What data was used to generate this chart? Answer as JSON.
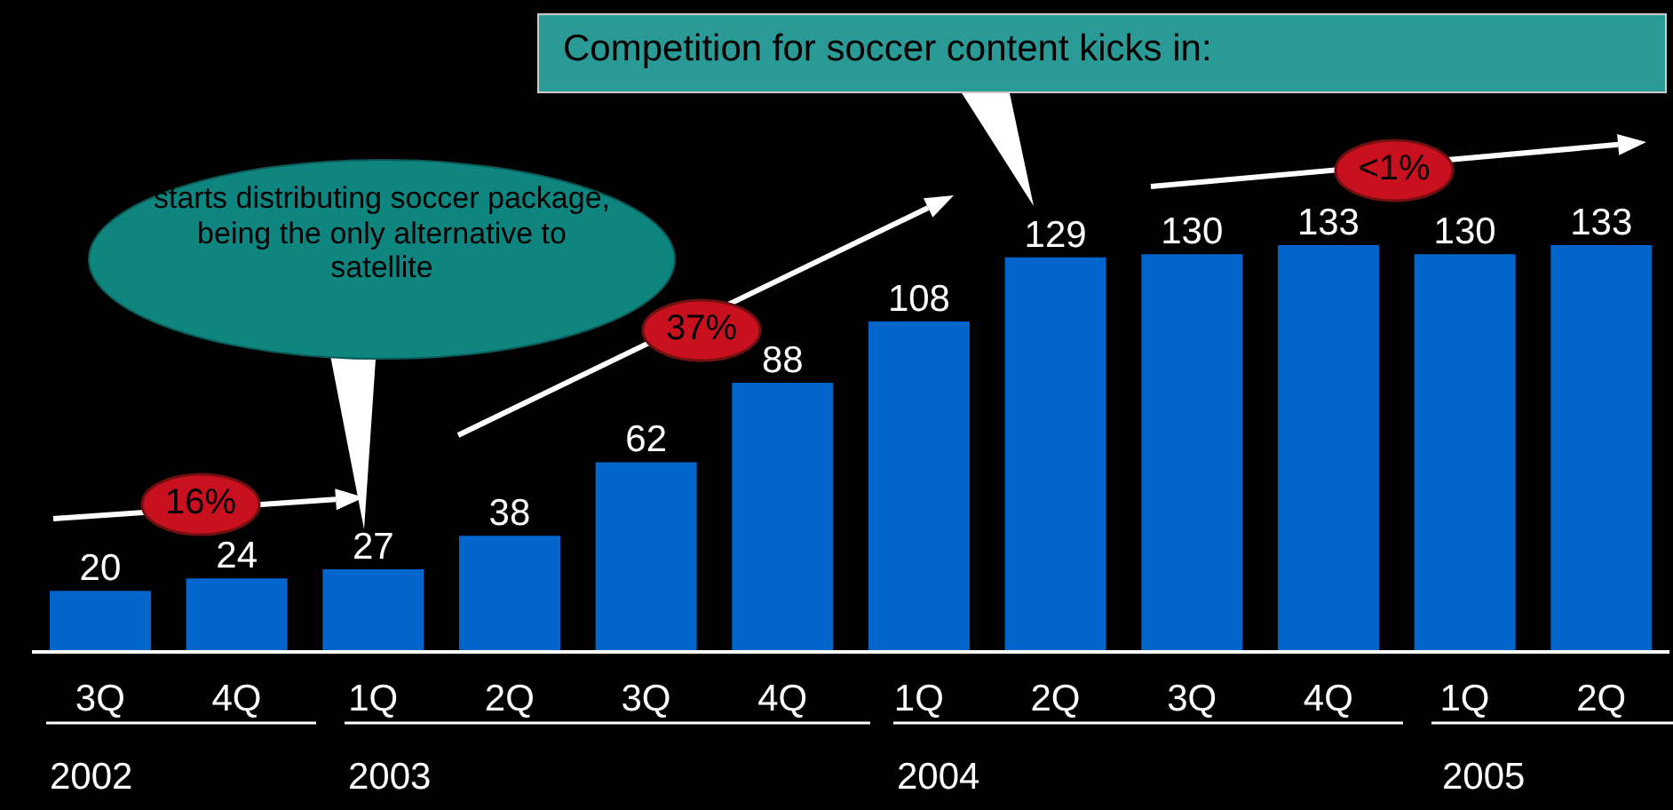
{
  "chart_data": {
    "type": "bar",
    "categories": [
      "3Q",
      "4Q",
      "1Q",
      "2Q",
      "3Q",
      "4Q",
      "1Q",
      "2Q",
      "3Q",
      "4Q",
      "1Q",
      "2Q"
    ],
    "values": [
      20,
      24,
      27,
      38,
      62,
      88,
      108,
      129,
      130,
      133,
      130,
      133
    ],
    "color": "#0066cc",
    "data_labels": true,
    "annotations": [
      "Competition for soccer content kicks in:",
      "starts distributing soccer package, being the only alternative to satellite",
      "16%",
      "37%",
      "<1%",
      "2002",
      "2003",
      "2004",
      "2005"
    ]
  }
}
